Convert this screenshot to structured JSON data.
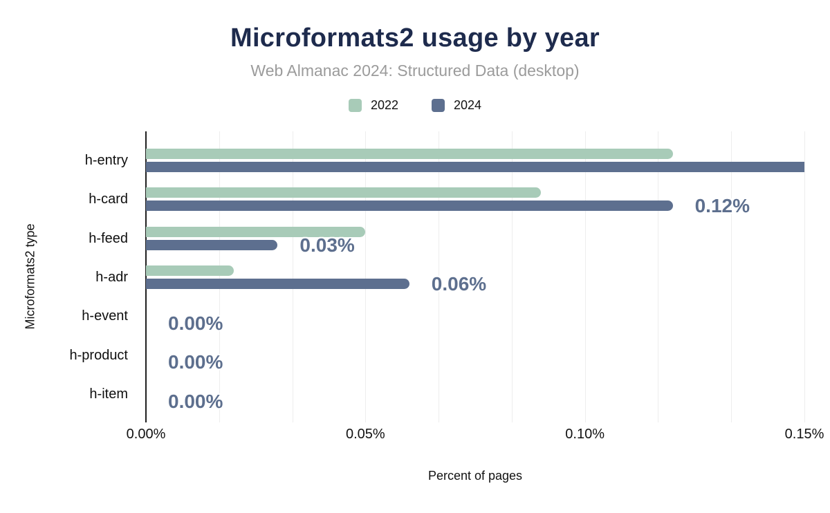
{
  "header": {
    "title": "Microformats2 usage by year",
    "subtitle": "Web Almanac 2024: Structured Data (desktop)"
  },
  "legend": [
    {
      "label": "2022",
      "color": "#a8cbb8"
    },
    {
      "label": "2024",
      "color": "#5d6f8f"
    }
  ],
  "chart_data": {
    "type": "bar",
    "orientation": "horizontal",
    "title": "Microformats2 usage by year",
    "subtitle": "Web Almanac 2024: Structured Data (desktop)",
    "categories": [
      "h-entry",
      "h-card",
      "h-feed",
      "h-adr",
      "h-event",
      "h-product",
      "h-item"
    ],
    "series": [
      {
        "name": "2022",
        "color": "#a8cbb8",
        "values": [
          0.12,
          0.09,
          0.05,
          0.02,
          0.0,
          0.0,
          0.0
        ]
      },
      {
        "name": "2024",
        "color": "#5d6f8f",
        "values": [
          0.15,
          0.12,
          0.03,
          0.06,
          0.0,
          0.0,
          0.0
        ]
      }
    ],
    "data_labels": {
      "series": "2024",
      "values": [
        null,
        "0.12%",
        "0.03%",
        "0.06%",
        "0.00%",
        "0.00%",
        "0.00%"
      ]
    },
    "xlabel": "Percent of pages",
    "ylabel": "Microformats2 type",
    "x_ticks": [
      "0.00%",
      "0.05%",
      "0.10%",
      "0.15%"
    ],
    "xlim": [
      0,
      0.15
    ],
    "grid": "vertical gridlines, 9 equal intervals (minor every third of a 0.05% tick step)",
    "legend_position": "top center"
  },
  "colors": {
    "title": "#1e2b4d",
    "subtitle": "#9b9b9b",
    "data_label": "#5d6f8e",
    "axis": "#1f1f1f",
    "gridline": "#ededed",
    "background": "#ffffff"
  }
}
